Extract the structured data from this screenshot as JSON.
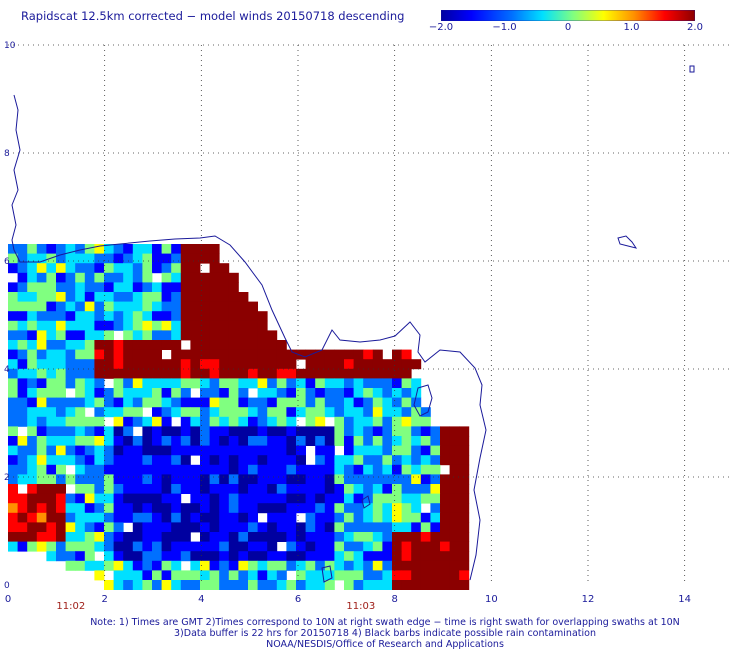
{
  "title": "Rapidscat 12.5km corrected − model winds 20150718 descending",
  "colorbar": {
    "labels": [
      "−2.0",
      "−1.0",
      "0",
      "1.0",
      "2.0"
    ],
    "values": [
      -2.0,
      -1.0,
      0,
      1.0,
      2.0
    ],
    "range": [
      -2.0,
      2.0
    ],
    "colors": [
      "#0000a0",
      "#0000ff",
      "#0070ff",
      "#00e0ff",
      "#80ff80",
      "#ffff00",
      "#ff9000",
      "#ff0000",
      "#8b0000"
    ]
  },
  "axes": {
    "x_ticks": [
      "0",
      "2",
      "4",
      "6",
      "8",
      "10",
      "12",
      "14"
    ],
    "x_values": [
      0,
      2,
      4,
      6,
      8,
      10,
      12,
      14
    ],
    "y_ticks": [
      "0",
      "2",
      "4",
      "6",
      "8",
      "10"
    ],
    "y_values": [
      0,
      2,
      4,
      6,
      8,
      10
    ],
    "xlim": [
      0,
      15
    ],
    "ylim": [
      0,
      10
    ],
    "grid": true
  },
  "time_labels": [
    {
      "text": "11:02",
      "x": 1.3
    },
    {
      "text": "11:03",
      "x": 7.3
    }
  ],
  "notes": [
    "Note: 1) Times are GMT 2)Times correspond to 10N at right swath edge − time is right swath for overlapping swaths at 10N",
    "3)Data buffer is 22 hrs for 20150718 4) Black barbs indicate possible rain contamination",
    "NOAA/NESDIS/Office of Research and Applications"
  ]
}
